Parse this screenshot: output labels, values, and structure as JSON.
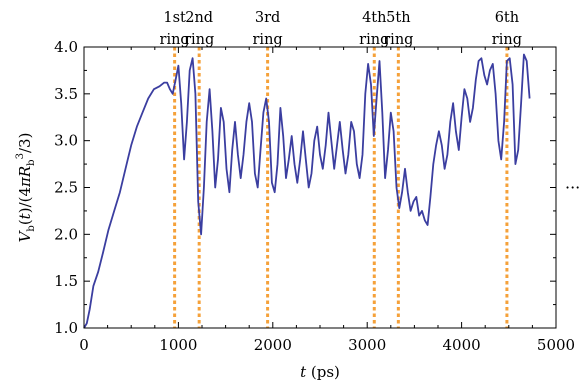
{
  "chart_data": {
    "type": "line",
    "title": "",
    "xlabel": "t (ps)",
    "ylabel": "V_b(t)/(4πR_b^3/3)",
    "xlim": [
      0,
      5000
    ],
    "ylim": [
      1.0,
      4.0
    ],
    "x_ticks": [
      0,
      1000,
      2000,
      3000,
      4000,
      5000
    ],
    "x_tick_labels": [
      "0",
      "1000",
      "2000",
      "3000",
      "4000",
      "5000"
    ],
    "y_ticks": [
      1.0,
      1.5,
      2.0,
      2.5,
      3.0,
      3.5,
      4.0
    ],
    "y_tick_labels": [
      "1.0",
      "1.5",
      "2.0",
      "2.5",
      "3.0",
      "3.5",
      "4.0"
    ],
    "grid": false,
    "legend": "none",
    "trailing_annotation": "···",
    "series": [
      {
        "color": "#3b3ea0",
        "x": [
          0,
          30,
          60,
          100,
          150,
          200,
          260,
          320,
          380,
          440,
          500,
          560,
          620,
          680,
          740,
          800,
          850,
          880,
          910,
          940,
          970,
          1000,
          1030,
          1060,
          1090,
          1120,
          1150,
          1180,
          1210,
          1240,
          1270,
          1300,
          1330,
          1360,
          1390,
          1420,
          1450,
          1480,
          1510,
          1540,
          1570,
          1600,
          1630,
          1660,
          1690,
          1720,
          1750,
          1780,
          1810,
          1840,
          1870,
          1900,
          1930,
          1960,
          1990,
          2020,
          2050,
          2080,
          2110,
          2140,
          2170,
          2200,
          2230,
          2260,
          2290,
          2320,
          2350,
          2380,
          2410,
          2440,
          2470,
          2500,
          2530,
          2560,
          2590,
          2620,
          2650,
          2680,
          2710,
          2740,
          2770,
          2800,
          2830,
          2860,
          2890,
          2920,
          2950,
          2980,
          3010,
          3040,
          3070,
          3100,
          3130,
          3160,
          3190,
          3220,
          3250,
          3280,
          3310,
          3340,
          3370,
          3400,
          3430,
          3460,
          3490,
          3520,
          3550,
          3580,
          3610,
          3640,
          3670,
          3700,
          3730,
          3760,
          3790,
          3820,
          3850,
          3880,
          3910,
          3940,
          3970,
          4000,
          4030,
          4060,
          4090,
          4120,
          4150,
          4180,
          4210,
          4240,
          4270,
          4300,
          4330,
          4360,
          4390,
          4420,
          4450,
          4480,
          4510,
          4540,
          4570,
          4600,
          4630,
          4660,
          4690,
          4720
        ],
        "y": [
          1.0,
          1.05,
          1.2,
          1.45,
          1.6,
          1.8,
          2.05,
          2.25,
          2.45,
          2.7,
          2.95,
          3.15,
          3.3,
          3.45,
          3.55,
          3.58,
          3.62,
          3.62,
          3.55,
          3.5,
          3.65,
          3.8,
          3.4,
          2.8,
          3.2,
          3.75,
          3.88,
          3.5,
          2.35,
          2.0,
          2.5,
          3.2,
          3.55,
          3.1,
          2.5,
          2.8,
          3.35,
          3.2,
          2.7,
          2.45,
          2.9,
          3.2,
          2.85,
          2.6,
          2.85,
          3.2,
          3.4,
          3.2,
          2.65,
          2.5,
          2.9,
          3.3,
          3.45,
          3.2,
          2.55,
          2.45,
          2.75,
          3.35,
          3.05,
          2.6,
          2.8,
          3.05,
          2.75,
          2.55,
          2.8,
          3.1,
          2.8,
          2.5,
          2.65,
          3.0,
          3.15,
          2.85,
          2.7,
          2.95,
          3.3,
          3.0,
          2.7,
          2.95,
          3.2,
          2.9,
          2.65,
          2.85,
          3.2,
          3.1,
          2.75,
          2.6,
          2.85,
          3.5,
          3.82,
          3.6,
          3.05,
          3.45,
          3.85,
          3.3,
          2.6,
          2.9,
          3.3,
          3.1,
          2.5,
          2.28,
          2.45,
          2.7,
          2.45,
          2.25,
          2.35,
          2.4,
          2.2,
          2.25,
          2.15,
          2.1,
          2.4,
          2.75,
          2.95,
          3.1,
          2.95,
          2.7,
          2.85,
          3.2,
          3.4,
          3.1,
          2.9,
          3.25,
          3.55,
          3.45,
          3.2,
          3.35,
          3.65,
          3.85,
          3.88,
          3.7,
          3.6,
          3.75,
          3.82,
          3.5,
          3.0,
          2.8,
          3.2,
          3.85,
          3.88,
          3.6,
          2.75,
          2.9,
          3.4,
          3.92,
          3.85,
          3.45
        ]
      }
    ],
    "vertical_lines": {
      "color": "#f5a13a",
      "items": [
        {
          "x": 960,
          "label_line1": "1st",
          "label_line2": "ring"
        },
        {
          "x": 1220,
          "label_line1": "2nd",
          "label_line2": "ring"
        },
        {
          "x": 1945,
          "label_line1": "3rd",
          "label_line2": "ring"
        },
        {
          "x": 3075,
          "label_line1": "4th",
          "label_line2": "ring"
        },
        {
          "x": 3330,
          "label_line1": "5th",
          "label_line2": "ring"
        },
        {
          "x": 4480,
          "label_line1": "6th",
          "label_line2": "ring"
        }
      ]
    }
  }
}
